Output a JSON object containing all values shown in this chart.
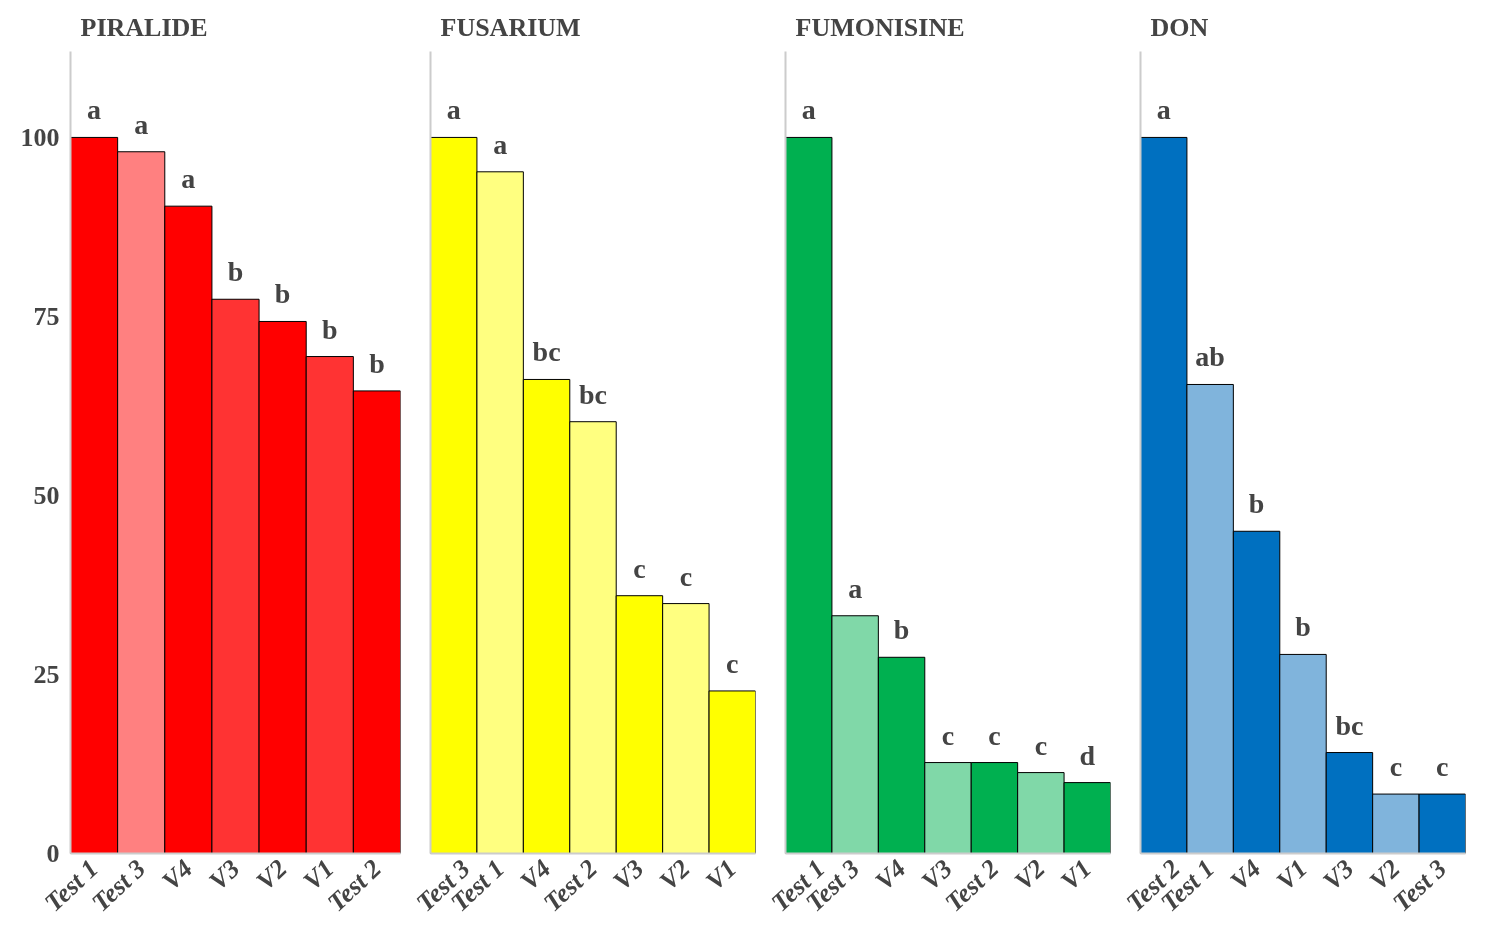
{
  "chart_data": [
    {
      "type": "bar",
      "title": "PIRALIDE",
      "categories": [
        "Test 1",
        "Test 3",
        "V4",
        "V3",
        "V2",
        "V1",
        "Test 2"
      ],
      "values": [
        100,
        98,
        90.4,
        77.4,
        74.3,
        69.4,
        64.6
      ],
      "colors": [
        "#ff0000",
        "#ff8080",
        "#ff0000",
        "#ff3333",
        "#ff0000",
        "#ff3333",
        "#ff0000"
      ],
      "ylim": [
        0,
        112
      ],
      "yticks": [
        0,
        25,
        50,
        75,
        100
      ],
      "grid": false,
      "annotations": [
        {
          "text": "a",
          "x": "Test 1",
          "y": 100
        },
        {
          "text": "a",
          "x": "Test 3",
          "y": 98
        },
        {
          "text": "a",
          "x": "V4",
          "y": 90.4
        },
        {
          "text": "b",
          "x": "V3",
          "y": 77.4
        },
        {
          "text": "b",
          "x": "V2",
          "y": 74.3
        },
        {
          "text": "b",
          "x": "V1",
          "y": 69.4
        },
        {
          "text": "b",
          "x": "Test 2",
          "y": 64.6
        }
      ]
    },
    {
      "type": "bar",
      "title": "FUSARIUM",
      "categories": [
        "Test 3",
        "Test 1",
        "V4",
        "Test 2",
        "V3",
        "V2",
        "V1"
      ],
      "values": [
        100,
        95.2,
        66.2,
        60.3,
        36.0,
        34.9,
        22.7
      ],
      "colors": [
        "#ffff00",
        "#ffff80",
        "#ffff00",
        "#ffff80",
        "#ffff00",
        "#ffff80",
        "#ffff00"
      ],
      "ylim": [
        0,
        112
      ],
      "grid": false,
      "tick_labels": "x",
      "annotations": [
        {
          "text": "a",
          "x": "Test 3",
          "y": 100
        },
        {
          "text": "a",
          "x": "Test 1",
          "y": 95.2
        },
        {
          "text": "bc",
          "x": "V4",
          "y": 66.2
        },
        {
          "text": "bc",
          "x": "Test 2",
          "y": 60.3
        },
        {
          "text": "c",
          "x": "V3",
          "y": 36.0
        },
        {
          "text": "c",
          "x": "V2",
          "y": 34.9
        },
        {
          "text": "c",
          "x": "V1",
          "y": 22.7
        }
      ]
    },
    {
      "type": "bar",
      "title": "FUMONISINE",
      "categories": [
        "Test 1",
        "Test 3",
        "V4",
        "V3",
        "Test 2",
        "V2",
        "V1"
      ],
      "values": [
        100,
        33.2,
        27.4,
        12.7,
        12.7,
        11.3,
        9.9
      ],
      "colors": [
        "#00b050",
        "#80d8a8",
        "#00b050",
        "#80d8a8",
        "#00b050",
        "#80d8a8",
        "#00b050"
      ],
      "ylim": [
        0,
        112
      ],
      "grid": false,
      "tick_labels": "x",
      "annotations": [
        {
          "text": "a",
          "x": "Test 1",
          "y": 100
        },
        {
          "text": "a",
          "x": "Test 3",
          "y": 33.2
        },
        {
          "text": "b",
          "x": "V4",
          "y": 27.4
        },
        {
          "text": "c",
          "x": "V3",
          "y": 12.7
        },
        {
          "text": "c",
          "x": "Test 2",
          "y": 12.7
        },
        {
          "text": "c",
          "x": "V2",
          "y": 11.3
        },
        {
          "text": "d",
          "x": "V1",
          "y": 9.9
        }
      ]
    },
    {
      "type": "bar",
      "title": "DON",
      "categories": [
        "Test 2",
        "Test 1",
        "V4",
        "V1",
        "V3",
        "V2",
        "Test 3"
      ],
      "values": [
        100,
        65.5,
        45.0,
        27.8,
        14.1,
        8.3,
        8.3
      ],
      "colors": [
        "#0070c0",
        "#80b4dc",
        "#0070c0",
        "#80b4dc",
        "#0070c0",
        "#80b4dc",
        "#0070c0"
      ],
      "ylim": [
        0,
        112
      ],
      "grid": false,
      "tick_labels": "x",
      "annotations": [
        {
          "text": "a",
          "x": "Test 2",
          "y": 100
        },
        {
          "text": "ab",
          "x": "Test 1",
          "y": 65.5
        },
        {
          "text": "b",
          "x": "V4",
          "y": 45.0
        },
        {
          "text": "b",
          "x": "V1",
          "y": 27.8
        },
        {
          "text": "bc",
          "x": "V3",
          "y": 14.1
        },
        {
          "text": "c",
          "x": "V2",
          "y": 8.3
        },
        {
          "text": "c",
          "x": "Test 3",
          "y": 8.3
        }
      ]
    }
  ]
}
